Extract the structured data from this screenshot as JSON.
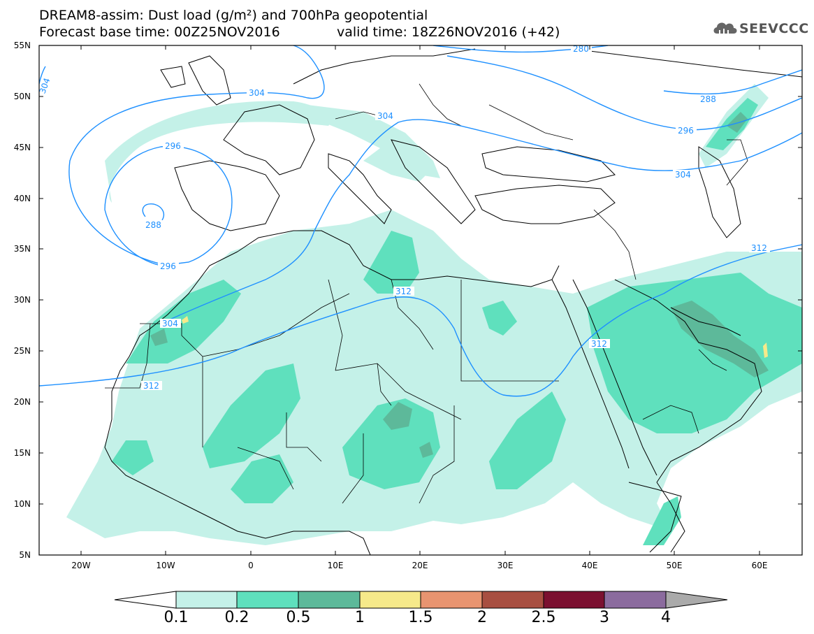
{
  "title": {
    "line1": "DREAM8-assim: Dust load (g/m²) and 700hPa geopotential",
    "line2": "Forecast base time: 00Z25NOV2016",
    "valid": "valid time: 18Z26NOV2016 (+42)"
  },
  "logo": {
    "text": "SEEVCCC",
    "icon": "cloud-logo-icon"
  },
  "map": {
    "region": "North Africa, Europe, Middle East",
    "lat_labels": [
      "55N",
      "50N",
      "45N",
      "40N",
      "35N",
      "30N",
      "25N",
      "20N",
      "15N",
      "10N",
      "5N"
    ],
    "lon_labels": [
      "20W",
      "10W",
      "0",
      "10E",
      "20E",
      "30E",
      "40E",
      "50E",
      "60E"
    ],
    "contour_labels": [
      "280",
      "288",
      "296",
      "304",
      "312"
    ],
    "colors": {
      "contour": "#1e90ff",
      "coast": "#000000"
    }
  },
  "colorbar": {
    "labels": [
      "0.1",
      "0.2",
      "0.5",
      "1",
      "1.5",
      "2",
      "2.5",
      "3",
      "4"
    ],
    "colors": [
      "#c4f1e8",
      "#5fe0bd",
      "#5db99a",
      "#f6e98a",
      "#e89470",
      "#a84f41",
      "#7b1030",
      "#8b6b9e",
      "#aaaaaa"
    ],
    "under_color": "#ffffff"
  }
}
